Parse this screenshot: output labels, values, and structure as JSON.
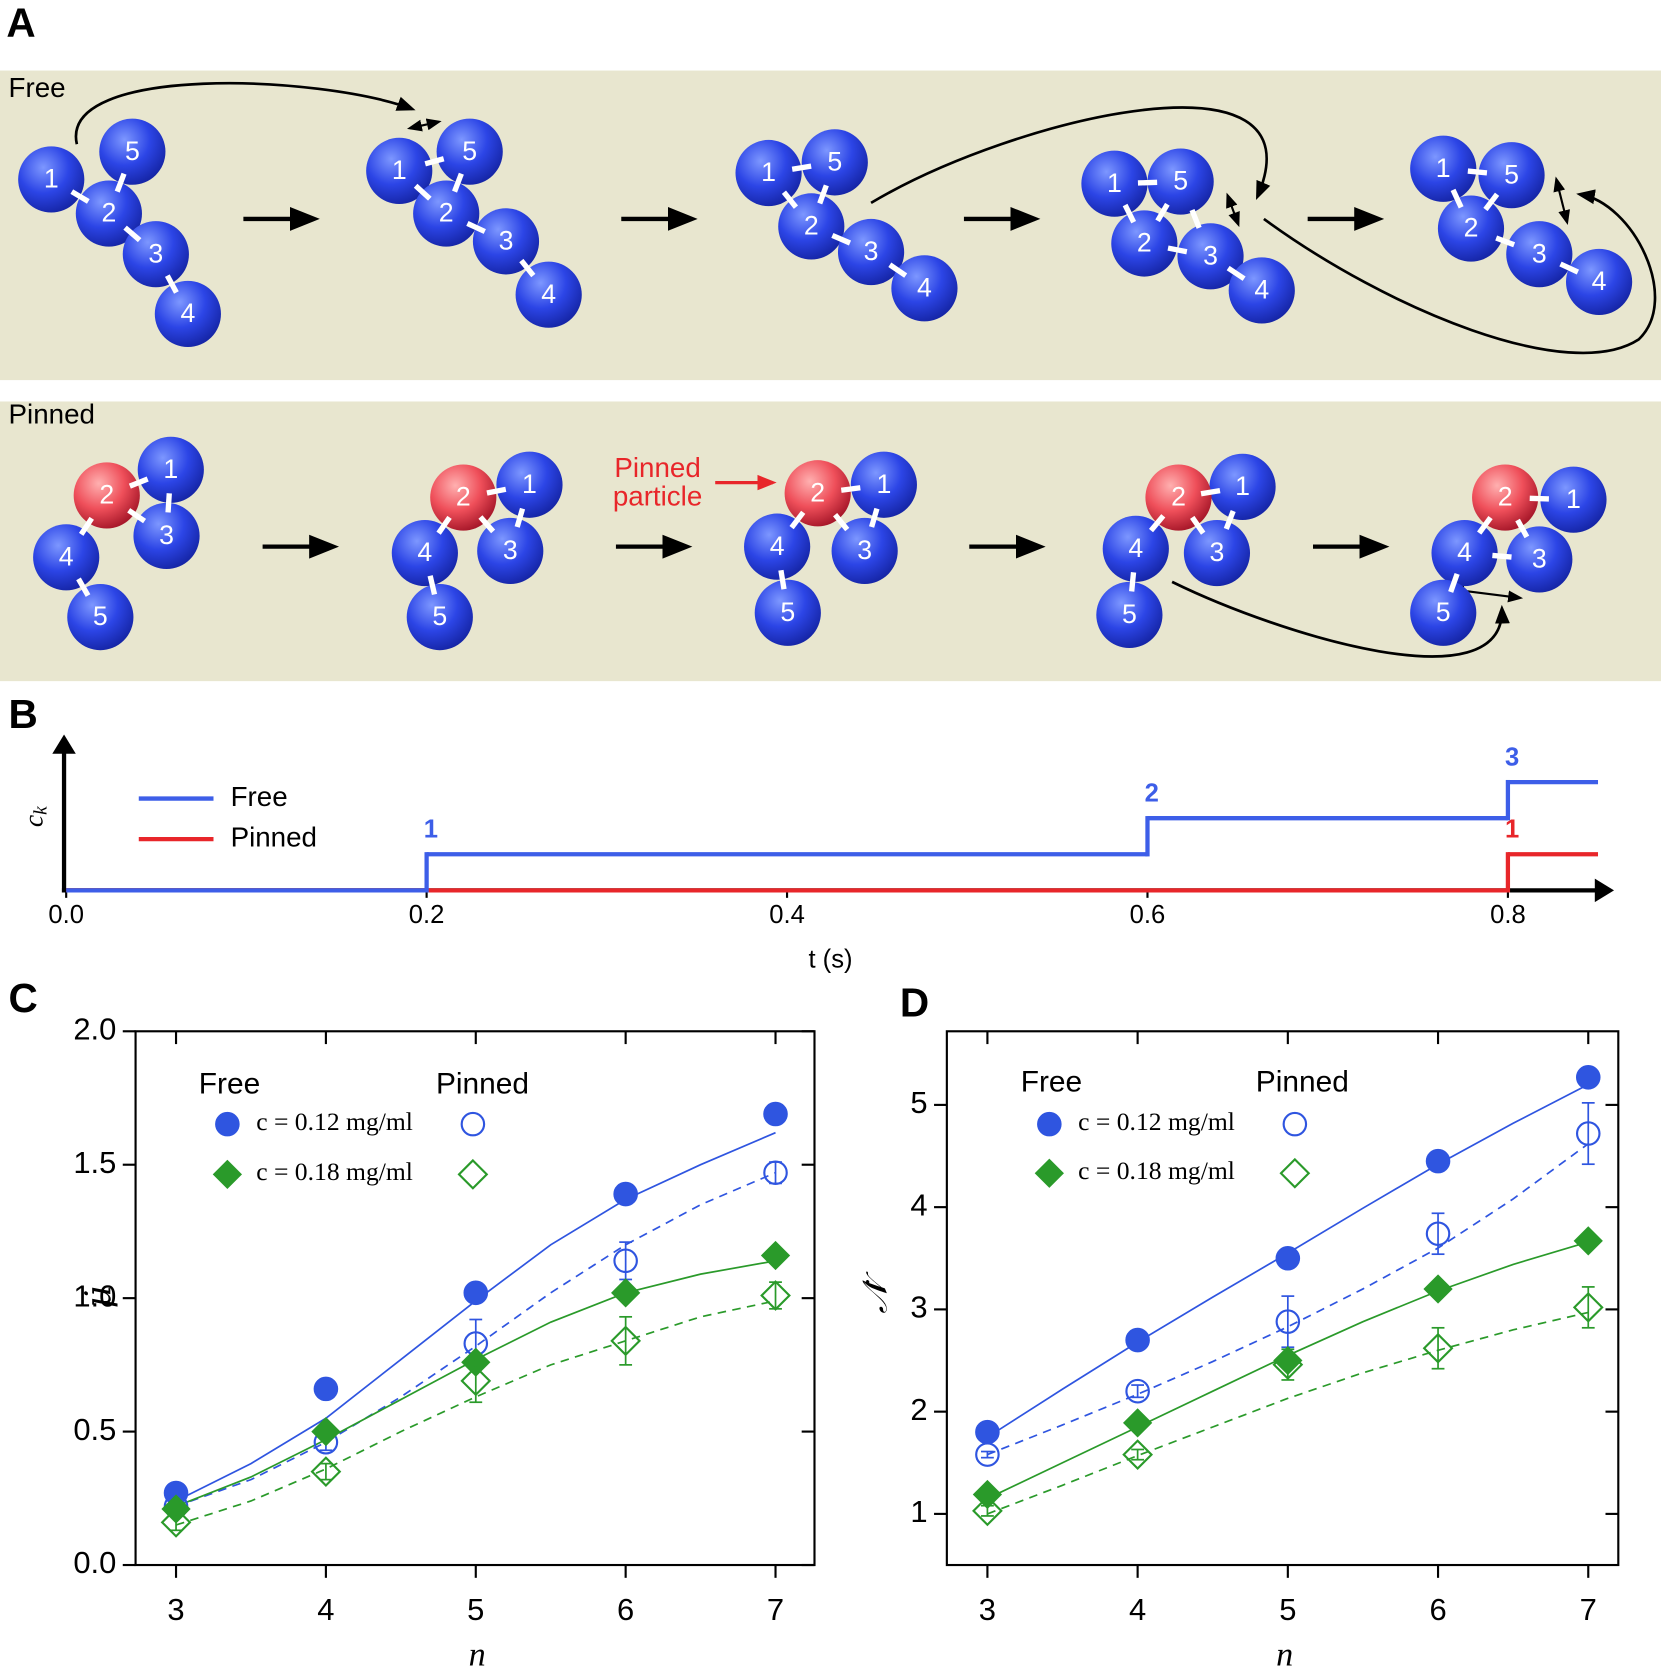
{
  "diagram": {
    "label": "A",
    "rows": [
      {
        "title": "Free",
        "particles": [
          "1",
          "2",
          "3",
          "4",
          "5"
        ]
      },
      {
        "title": "Pinned",
        "particles": [
          "1",
          "2",
          "3",
          "4",
          "5"
        ],
        "annotation": "Pinned particle"
      }
    ]
  },
  "chart_data": [
    {
      "label": "B",
      "type": "step",
      "xlabel": "t (s)",
      "ylabel": "c_k",
      "xlim": [
        0,
        0.85
      ],
      "xticks": [
        {
          "value": 0,
          "label": "0.0"
        },
        0.2,
        0.4,
        0.6,
        0.8
      ],
      "ylim": [
        0,
        4.2
      ],
      "series": [
        {
          "name": "Free",
          "color": "#3d5ee8",
          "x": [
            0,
            0.2,
            0.6,
            0.8
          ],
          "values": [
            0,
            1,
            2,
            3
          ]
        },
        {
          "name": "Pinned",
          "color": "#e8262a",
          "x": [
            0,
            0.8
          ],
          "values": [
            0,
            1
          ]
        }
      ]
    },
    {
      "label": "C",
      "type": "scatter",
      "xlabel": "n",
      "ylabel": "μ̇",
      "x": [
        3,
        4,
        5,
        6,
        7
      ],
      "xlim": [
        2.73,
        7.26
      ],
      "xticks": [
        3,
        4,
        5,
        6,
        7
      ],
      "ylim": [
        0,
        2
      ],
      "yticks": [
        {
          "value": 0,
          "label": "0.0"
        },
        0.5,
        {
          "value": 1,
          "label": "1.0"
        },
        1.5,
        {
          "value": 2,
          "label": "2.0"
        }
      ],
      "series": [
        {
          "name": "c = 0.12 mg/ml",
          "group": "Free",
          "color": "#2f55e0",
          "marker": "circle",
          "filled": true,
          "values": [
            0.27,
            0.66,
            1.02,
            1.39,
            1.69
          ]
        },
        {
          "name": "c = 0.12 mg/ml",
          "group": "Pinned",
          "color": "#2f55e0",
          "marker": "circle",
          "filled": false,
          "values": [
            0.22,
            0.46,
            0.83,
            1.14,
            1.47
          ],
          "errors": [
            0.02,
            0.03,
            0.09,
            0.07,
            0.04
          ]
        },
        {
          "name": "c = 0.18 mg/ml",
          "group": "Free",
          "color": "#2a9a2a",
          "marker": "diamond",
          "filled": true,
          "values": [
            0.21,
            0.5,
            0.76,
            1.02,
            1.16
          ]
        },
        {
          "name": "c = 0.18 mg/ml",
          "group": "Pinned",
          "color": "#2a9a2a",
          "marker": "diamond",
          "filled": false,
          "values": [
            0.16,
            0.35,
            0.69,
            0.84,
            1.01
          ],
          "errors": [
            0.03,
            0.03,
            0.08,
            0.09,
            0.05
          ]
        }
      ],
      "fits": [
        {
          "color": "#2f55e0",
          "dash": false,
          "x": [
            3,
            3.5,
            4,
            4.5,
            5,
            5.5,
            6,
            6.5,
            7
          ],
          "values": [
            0.24,
            0.38,
            0.55,
            0.77,
            0.99,
            1.2,
            1.37,
            1.5,
            1.62
          ]
        },
        {
          "color": "#2f55e0",
          "dash": true,
          "x": [
            3,
            3.5,
            4,
            4.5,
            5,
            5.5,
            6,
            6.5,
            7
          ],
          "values": [
            0.22,
            0.32,
            0.46,
            0.63,
            0.82,
            1.02,
            1.2,
            1.35,
            1.47
          ]
        },
        {
          "color": "#2a9a2a",
          "dash": false,
          "x": [
            3,
            3.5,
            4,
            4.5,
            5,
            5.5,
            6,
            6.5,
            7
          ],
          "values": [
            0.22,
            0.33,
            0.47,
            0.62,
            0.77,
            0.91,
            1.02,
            1.09,
            1.14
          ]
        },
        {
          "color": "#2a9a2a",
          "dash": true,
          "x": [
            3,
            3.5,
            4,
            4.5,
            5,
            5.5,
            6,
            6.5,
            7
          ],
          "values": [
            0.15,
            0.24,
            0.36,
            0.5,
            0.63,
            0.75,
            0.84,
            0.93,
            0.99
          ]
        }
      ]
    },
    {
      "label": "D",
      "type": "scatter",
      "xlabel": "n",
      "ylabel": "𝒩̇",
      "x": [
        3,
        4,
        5,
        6,
        7
      ],
      "xlim": [
        2.73,
        7.2
      ],
      "xticks": [
        3,
        4,
        5,
        6,
        7
      ],
      "ylim": [
        0.5,
        5.72
      ],
      "yticks": [
        1,
        2,
        3,
        4,
        5
      ],
      "series": [
        {
          "name": "c = 0.12 mg/ml",
          "group": "Free",
          "color": "#2f55e0",
          "marker": "circle",
          "filled": true,
          "values": [
            1.8,
            2.7,
            3.5,
            4.45,
            5.27
          ]
        },
        {
          "name": "c = 0.12 mg/ml",
          "group": "Pinned",
          "color": "#2f55e0",
          "marker": "circle",
          "filled": false,
          "values": [
            1.58,
            2.2,
            2.88,
            3.74,
            4.72
          ],
          "errors": [
            0.03,
            0.06,
            0.25,
            0.2,
            0.3
          ]
        },
        {
          "name": "c = 0.18 mg/ml",
          "group": "Free",
          "color": "#2a9a2a",
          "marker": "diamond",
          "filled": true,
          "values": [
            1.19,
            1.89,
            2.5,
            3.2,
            3.67
          ]
        },
        {
          "name": "c = 0.18 mg/ml",
          "group": "Pinned",
          "color": "#2a9a2a",
          "marker": "diamond",
          "filled": false,
          "values": [
            1.03,
            1.58,
            2.46,
            2.62,
            3.02
          ],
          "errors": [
            0.05,
            0.05,
            0.15,
            0.2,
            0.2
          ]
        }
      ],
      "fits": [
        {
          "color": "#2f55e0",
          "dash": false,
          "x": [
            3,
            3.5,
            4,
            4.5,
            5,
            5.5,
            6,
            6.5,
            7
          ],
          "values": [
            1.75,
            2.22,
            2.68,
            3.12,
            3.55,
            3.99,
            4.42,
            4.82,
            5.2
          ]
        },
        {
          "color": "#2f55e0",
          "dash": true,
          "x": [
            3,
            3.5,
            4,
            4.5,
            5,
            5.5,
            6,
            6.5,
            7
          ],
          "values": [
            1.58,
            1.87,
            2.17,
            2.49,
            2.83,
            3.2,
            3.6,
            4.08,
            4.62
          ]
        },
        {
          "color": "#2a9a2a",
          "dash": false,
          "x": [
            3,
            3.5,
            4,
            4.5,
            5,
            5.5,
            6,
            6.5,
            7
          ],
          "values": [
            1.15,
            1.5,
            1.85,
            2.2,
            2.55,
            2.88,
            3.18,
            3.44,
            3.66
          ]
        },
        {
          "color": "#2a9a2a",
          "dash": true,
          "x": [
            3,
            3.5,
            4,
            4.5,
            5,
            5.5,
            6,
            6.5,
            7
          ],
          "values": [
            1.0,
            1.28,
            1.57,
            1.85,
            2.13,
            2.38,
            2.6,
            2.8,
            2.97
          ]
        }
      ]
    }
  ]
}
